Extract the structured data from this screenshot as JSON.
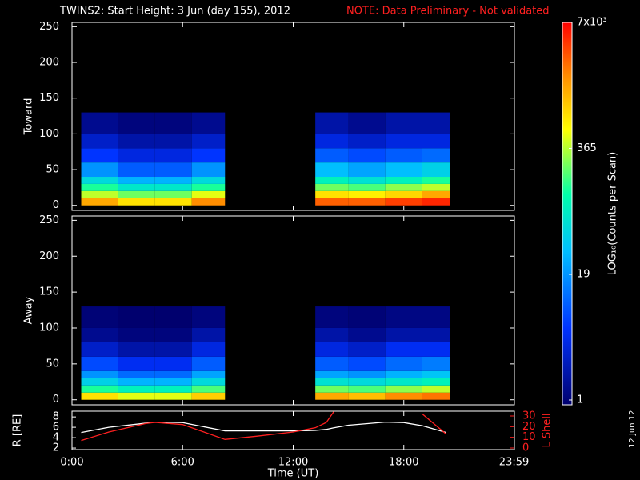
{
  "chart_data": [
    {
      "type": "heatmap",
      "title": "TWINS2: Start Height:  3 Jun (day 155), 2012",
      "note": "NOTE: Data Preliminary - Not validated",
      "ylabel": "Toward",
      "ylim": [
        -7,
        256
      ],
      "yticks": [
        0,
        50,
        100,
        150,
        200,
        250
      ],
      "x_bins": [
        0.5,
        2.5,
        4.5,
        6.5,
        8.3,
        13.2,
        15,
        17,
        19,
        20.5
      ],
      "y_bins": [
        0,
        10,
        20,
        30,
        40,
        60,
        80,
        100,
        130
      ],
      "values": [
        [
          1500,
          800,
          800,
          2000,
          null,
          3000,
          3000,
          4000,
          5000
        ],
        [
          400,
          250,
          250,
          500,
          null,
          800,
          700,
          900,
          1500
        ],
        [
          150,
          80,
          80,
          150,
          null,
          250,
          200,
          300,
          400
        ],
        [
          60,
          30,
          30,
          60,
          null,
          100,
          70,
          100,
          150
        ],
        [
          20,
          10,
          10,
          20,
          null,
          35,
          25,
          35,
          50
        ],
        [
          6,
          4,
          4,
          6,
          null,
          10,
          8,
          10,
          12
        ],
        [
          3,
          2,
          2,
          3,
          null,
          4,
          3,
          4,
          4
        ],
        [
          1.5,
          1.2,
          1.2,
          1.5,
          null,
          2,
          1.5,
          2,
          2
        ]
      ],
      "zlim": [
        1,
        7000
      ],
      "zlog": true,
      "colorbar": {
        "label": "LOG₁₀(Counts per Scan)",
        "ticks": [
          1,
          19,
          365,
          {
            "value": 7000,
            "label": "7x10³"
          }
        ]
      }
    },
    {
      "type": "heatmap",
      "ylabel": "Away",
      "ylim": [
        -7,
        256
      ],
      "yticks": [
        0,
        50,
        100,
        150,
        200,
        250
      ],
      "x_bins": [
        0.5,
        2.5,
        4.5,
        6.5,
        8.3,
        13.2,
        15,
        17,
        19,
        20.5
      ],
      "y_bins": [
        0,
        10,
        20,
        30,
        40,
        60,
        80,
        100,
        130
      ],
      "values": [
        [
          800,
          500,
          500,
          1000,
          null,
          1500,
          1200,
          2000,
          2500
        ],
        [
          150,
          100,
          100,
          200,
          null,
          250,
          200,
          300,
          400
        ],
        [
          50,
          30,
          30,
          60,
          null,
          70,
          60,
          80,
          100
        ],
        [
          20,
          12,
          12,
          25,
          null,
          25,
          20,
          30,
          40
        ],
        [
          8,
          5,
          5,
          10,
          null,
          10,
          8,
          12,
          15
        ],
        [
          3,
          2,
          2,
          4,
          null,
          4,
          3,
          5,
          5
        ],
        [
          1.5,
          1.2,
          1.2,
          2,
          null,
          2,
          1.5,
          2,
          2
        ],
        [
          1.1,
          1,
          1,
          1.2,
          null,
          1.2,
          1.1,
          1.3,
          1.3
        ]
      ],
      "zlim": [
        1,
        7000
      ],
      "zlog": true
    },
    {
      "type": "line",
      "xlabel": "Time (UT)",
      "ylabel": "R [RE]",
      "y2label": "L Shell",
      "xlim": [
        0,
        24
      ],
      "xticks": [
        {
          "value": 0,
          "label": "0:00"
        },
        {
          "value": 6,
          "label": "6:00"
        },
        {
          "value": 12,
          "label": "12:00"
        },
        {
          "value": 18,
          "label": "18:00"
        },
        {
          "value": 23.98,
          "label": "23:59"
        }
      ],
      "ylim": [
        1.7,
        9.1
      ],
      "yticks": [
        2,
        4,
        6,
        8
      ],
      "y2lim": [
        -1.5,
        34.5
      ],
      "y2ticks": [
        0,
        10,
        20,
        30
      ],
      "x": [
        0.5,
        2,
        4,
        4.5,
        6,
        8.3,
        10,
        12,
        13.2,
        13.8,
        14.2,
        15,
        17,
        18,
        19,
        20.3
      ],
      "series": [
        {
          "name": "R [RE]",
          "color": "#ffffff",
          "values": [
            5,
            6,
            6.8,
            7,
            6.9,
            5.3,
            5.3,
            5.3,
            5.4,
            5.6,
            5.9,
            6.4,
            7,
            6.9,
            6.3,
            5
          ]
        },
        {
          "name": "L Shell",
          "color": "#ff2020",
          "axis": "y2",
          "values": [
            7,
            15,
            23,
            24,
            22,
            8,
            11,
            15,
            19,
            24,
            34,
            null,
            null,
            null,
            32,
            13
          ]
        }
      ]
    }
  ],
  "footer_date": "12 Jun 12"
}
